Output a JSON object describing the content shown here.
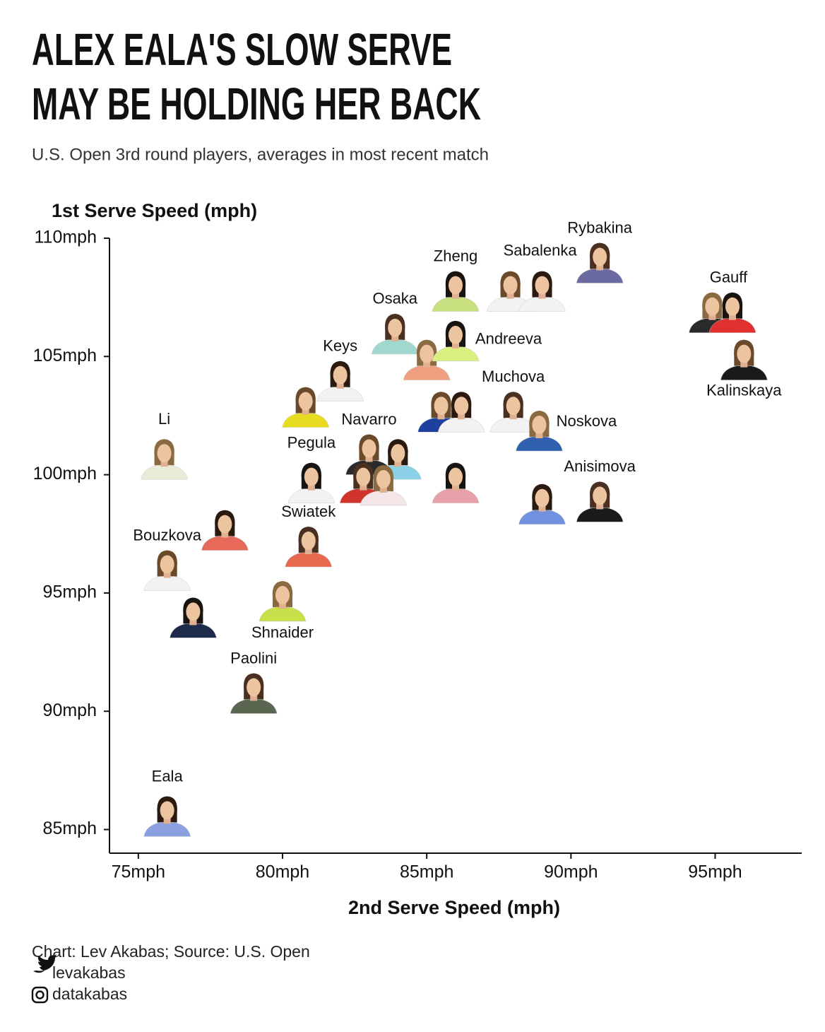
{
  "chart_data": {
    "type": "scatter",
    "title": [
      "ALEX EALA'S SLOW SERVE",
      "MAY BE HOLDING HER BACK"
    ],
    "subtitle": "U.S. Open 3rd round players, averages in most recent match",
    "y_label": "1st Serve Speed (mph)",
    "x_label": "2nd Serve Speed (mph)",
    "labels": [
      "Eala",
      "Paolini",
      "Shnaider",
      null,
      "Bouzkova",
      null,
      "Swiatek",
      "Li",
      "Pegula",
      "Navarro",
      null,
      null,
      null,
      null,
      null,
      "Keys",
      "Osaka",
      null,
      "Andreeva",
      null,
      null,
      "Muchova",
      "Noskova",
      "Zheng",
      "Sabalenka",
      null,
      "Rybakina",
      "Gauff",
      null,
      "Kalinskaya",
      null,
      "Anisimova"
    ],
    "x": [
      76.0,
      79.0,
      80.0,
      76.9,
      76.0,
      78.0,
      80.9,
      75.9,
      81.0,
      83.0,
      84.0,
      82.8,
      83.5,
      86.0,
      80.8,
      82.0,
      83.9,
      85.0,
      86.0,
      85.5,
      86.2,
      88.0,
      88.9,
      86.0,
      87.9,
      89.0,
      91.0,
      94.9,
      95.6,
      96.0,
      89.0,
      91.0
    ],
    "values": [
      85.6,
      90.8,
      94.7,
      94.0,
      96.0,
      97.7,
      97.0,
      100.7,
      99.7,
      100.9,
      100.7,
      99.7,
      99.6,
      99.7,
      102.9,
      104.0,
      106.0,
      104.9,
      105.7,
      102.7,
      102.7,
      102.7,
      101.9,
      107.8,
      107.8,
      107.8,
      109.0,
      106.9,
      106.9,
      104.9,
      98.8,
      98.9
    ],
    "colors": [
      "#8aa0e0",
      "#5b6650",
      "#c9e04a",
      "#1e2a4a",
      "#f2f2f2",
      "#e86a5a",
      "#e8674f",
      "#e9ecd8",
      "#f2f2f2",
      "#2a2a2a",
      "#8cd0e8",
      "#d0342c",
      "#f4e6e6",
      "#e8a0a8",
      "#e8dc20",
      "#f2f2f2",
      "#a0d8d0",
      "#f0a080",
      "#d8f080",
      "#2040a0",
      "#f2f2f2",
      "#f2f2f2",
      "#3060b0",
      "#c8e080",
      "#f2f2f2",
      "#f2f2f2",
      "#6a6aa0",
      "#2a2a2a",
      "#e03030",
      "#1a1a1a",
      "#7090e0",
      "#1a1a1a"
    ],
    "xlim": [
      74,
      98
    ],
    "ylim": [
      84,
      110
    ],
    "xticks": [
      {
        "value": 75,
        "label": "75mph"
      },
      {
        "value": 80,
        "label": "80mph"
      },
      {
        "value": 85,
        "label": "85mph"
      },
      {
        "value": 90,
        "label": "90mph"
      },
      {
        "value": 95,
        "label": "95mph"
      }
    ],
    "yticks": [
      {
        "value": 85,
        "label": "85mph"
      },
      {
        "value": 90,
        "label": "90mph"
      },
      {
        "value": 95,
        "label": "95mph"
      },
      {
        "value": 100,
        "label": "100mph"
      },
      {
        "value": 105,
        "label": "105mph"
      },
      {
        "value": 110,
        "label": "110mph"
      }
    ],
    "grid": false
  },
  "footer": {
    "credit": "Chart: Lev Akabas; Source: U.S. Open",
    "twitter": "levakabas",
    "instagram": "datakabas"
  }
}
